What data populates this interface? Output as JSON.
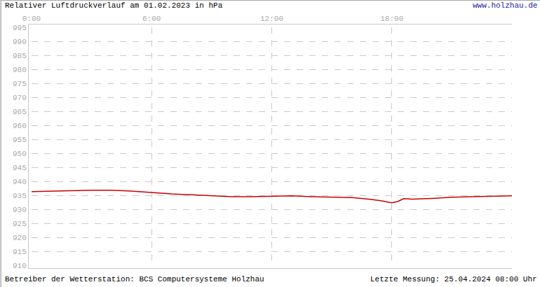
{
  "chart_data": {
    "type": "line",
    "title": "Relativer Luftdruckverlauf am 01.02.2023 in hPa",
    "annotations": [
      "www.holzhau.de",
      "Betreiber der Wetterstation: BCS Computersysteme Holzhau",
      "Letzte Messung: 25.04.2024 08:00 Uhr"
    ],
    "x": [
      0,
      1,
      2,
      3,
      4,
      5,
      6,
      7,
      8,
      9,
      10,
      11,
      12,
      13,
      14,
      15,
      16,
      17,
      17.5,
      18,
      18.3,
      18.6,
      19,
      20,
      21,
      22,
      23,
      24
    ],
    "values": [
      936.3,
      936.5,
      936.7,
      936.8,
      936.8,
      936.5,
      936.0,
      935.5,
      935.2,
      934.8,
      934.5,
      934.5,
      934.7,
      934.8,
      934.5,
      934.4,
      934.2,
      933.5,
      933.0,
      932.3,
      932.8,
      933.8,
      933.6,
      933.9,
      934.3,
      934.5,
      934.6,
      934.8
    ],
    "color": "#cc0000",
    "xlim": [
      0,
      24
    ],
    "xticks": [
      {
        "value": 0,
        "label": "0:00"
      },
      {
        "value": 6,
        "label": "6:00"
      },
      {
        "value": 12,
        "label": "12:00"
      },
      {
        "value": 18,
        "label": "18:00"
      }
    ],
    "ylim": [
      910,
      995
    ],
    "yticks": [
      910,
      915,
      920,
      925,
      930,
      935,
      940,
      945,
      950,
      955,
      960,
      965,
      970,
      975,
      980,
      985,
      990,
      995
    ],
    "grid": true
  }
}
